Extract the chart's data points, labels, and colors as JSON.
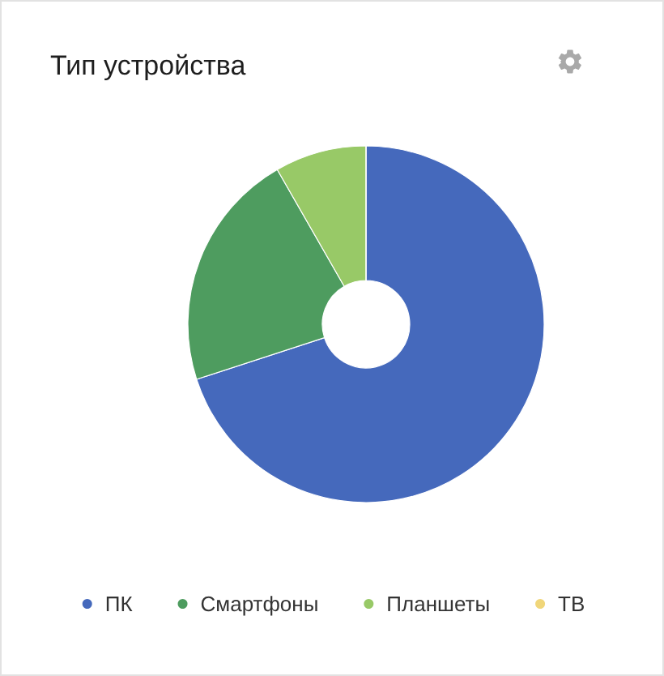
{
  "chart_data": {
    "type": "donut",
    "title": "Тип устройства",
    "categories": [
      "ПК",
      "Смартфоны",
      "Планшеты",
      "ТВ"
    ],
    "values": [
      70,
      21.7,
      8.3,
      0
    ],
    "colors": [
      "#4569bc",
      "#4e9c5f",
      "#98c967",
      "#f0d67a"
    ],
    "legend": "bottom"
  }
}
